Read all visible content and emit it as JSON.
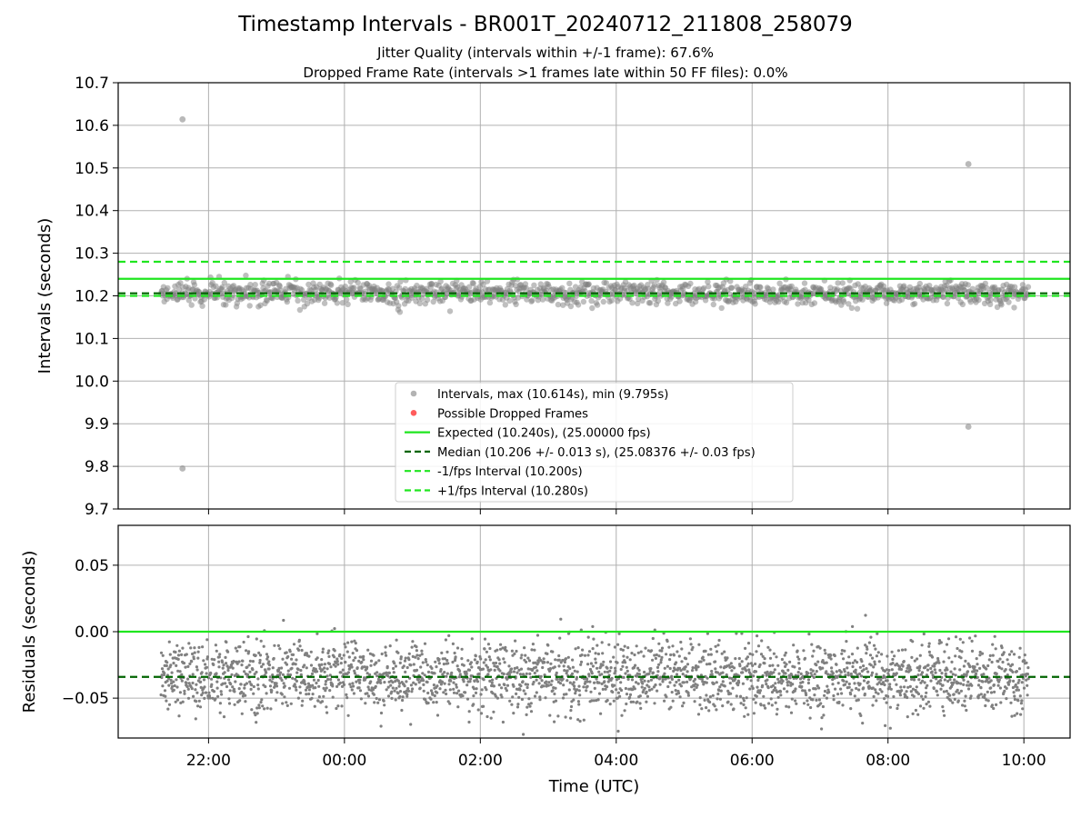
{
  "title": "Timestamp Intervals - BR001T_20240712_211808_258079",
  "subtitle_1": "Jitter Quality (intervals within +/-1 frame): 67.6%",
  "subtitle_2": "Dropped Frame Rate (intervals >1 frames late within 50 FF files): 0.0%",
  "colors": {
    "points": "#808080",
    "expected": "#1fe61f",
    "median": "#006400",
    "fps_band": "#1fe61f",
    "dropped": "#ff3333",
    "grid": "#b0b0b0"
  },
  "chart_data": [
    {
      "type": "scatter",
      "panel": "top",
      "ylabel": "Intervals (seconds)",
      "xlabel": "",
      "ylim": [
        9.7,
        10.7
      ],
      "yticks": [
        "9.7",
        "9.8",
        "9.9",
        "10.0",
        "10.1",
        "10.2",
        "10.3",
        "10.4",
        "10.5",
        "10.6",
        "10.7"
      ],
      "xlim_hours_from_midnight": [
        -3.33,
        10.68
      ],
      "grid": true,
      "legend_position": "lower center",
      "legend": [
        {
          "label": "Intervals, max (10.614s), min (9.795s)",
          "kind": "dot-gray"
        },
        {
          "label": "Possible Dropped Frames",
          "kind": "dot-red"
        },
        {
          "label": "Expected (10.240s), (25.00000 fps)",
          "kind": "line-green"
        },
        {
          "label": "Median (10.206 +/- 0.013 s), (25.08376 +/- 0.03 fps)",
          "kind": "dash-darkgreen"
        },
        {
          "label": "-1/fps Interval (10.200s)",
          "kind": "dash-green"
        },
        {
          "label": "+1/fps Interval (10.280s)",
          "kind": "dash-green"
        }
      ],
      "lines": {
        "expected": 10.24,
        "median": 10.206,
        "minus_fps": 10.2,
        "plus_fps": 10.28
      },
      "data_range_time": [
        "21:18",
        "10:04"
      ],
      "median": 10.206,
      "spread": 0.013,
      "outliers": [
        {
          "x": "21:37",
          "y": 10.614
        },
        {
          "x": "21:37",
          "y": 9.795
        },
        {
          "x": "09:11",
          "y": 10.509
        },
        {
          "x": "09:11",
          "y": 9.893
        }
      ]
    },
    {
      "type": "scatter",
      "panel": "bottom",
      "ylabel": "Residuals (seconds)",
      "xlabel": "Time (UTC)",
      "ylim": [
        -0.08,
        0.08
      ],
      "yticks": [
        "−0.05",
        "0.00",
        "0.05"
      ],
      "xticks": [
        "22:00",
        "00:00",
        "02:00",
        "04:00",
        "06:00",
        "08:00",
        "10:00"
      ],
      "grid": true,
      "lines": {
        "expected": 0.0,
        "median": -0.034
      },
      "median": -0.034,
      "spread": 0.013
    }
  ]
}
